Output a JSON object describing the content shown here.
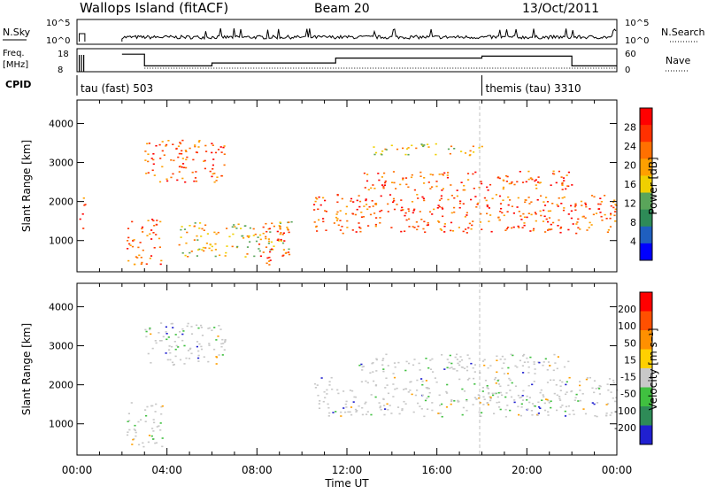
{
  "header": {
    "title": "Wallops Island (fitACF)",
    "beam": "Beam 20",
    "date": "13/Oct/2011"
  },
  "strip_labels": {
    "nsky": "N.Sky",
    "nsky_ticks": [
      "10^5",
      "10^0"
    ],
    "nsearch": "N.Search",
    "nsearch_ticks": [
      "10^5",
      "10^0"
    ],
    "freq_top": "Freq.",
    "freq_unit": "[MHz]",
    "freq_ticks": [
      "18",
      "8"
    ],
    "nave": "Nave",
    "nave_ticks": [
      "60",
      "0"
    ],
    "cpid": "CPID"
  },
  "cpid_segments": [
    {
      "label": "tau (fast) 503",
      "start_hour": 0
    },
    {
      "label": "themis (tau) 3310",
      "start_hour": 18
    }
  ],
  "colors": {
    "frame": "#000000",
    "power_scale": [
      "#0000ff",
      "#1f5fbf",
      "#2e8b57",
      "#5aa55a",
      "#f0d000",
      "#ffa000",
      "#ff7000",
      "#ff3000",
      "#ff0000"
    ],
    "velocity_scale": [
      "#2020d0",
      "#2e8b57",
      "#40c040",
      "#c8c8c8",
      "#ffd000",
      "#ff9000",
      "#ff5000",
      "#ff0000"
    ]
  },
  "chart_data": [
    {
      "type": "heatmap",
      "name": "power-panel",
      "ylabel": "Slant Range [km]",
      "xlabel": "",
      "x_unit": "hour UT",
      "xlim": [
        0,
        24
      ],
      "ylim": [
        200,
        4600
      ],
      "yticks": [
        1000,
        2000,
        3000,
        4000
      ],
      "colorbar": {
        "label": "Power [dB]",
        "ticks": [
          4,
          8,
          12,
          16,
          20,
          24,
          28
        ]
      },
      "echo_regions": [
        {
          "hour_start": 0.1,
          "hour_end": 0.35,
          "range_low": 1300,
          "range_high": 2200,
          "level": "high"
        },
        {
          "hour_start": 2.2,
          "hour_end": 3.8,
          "range_low": 400,
          "range_high": 1600,
          "level": "high"
        },
        {
          "hour_start": 3.0,
          "hour_end": 6.6,
          "range_low": 2500,
          "range_high": 3600,
          "level": "high"
        },
        {
          "hour_start": 4.5,
          "hour_end": 9.5,
          "range_low": 600,
          "range_high": 1500,
          "level": "medium"
        },
        {
          "hour_start": 8.0,
          "hour_end": 9.4,
          "range_low": 400,
          "range_high": 1400,
          "level": "high"
        },
        {
          "hour_start": 10.5,
          "hour_end": 24,
          "range_low": 1200,
          "range_high": 2200,
          "level": "high"
        },
        {
          "hour_start": 12.5,
          "hour_end": 22,
          "range_low": 2300,
          "range_high": 2800,
          "level": "high"
        },
        {
          "hour_start": 13.0,
          "hour_end": 18.0,
          "range_low": 3200,
          "range_high": 3500,
          "level": "medium"
        }
      ]
    },
    {
      "type": "heatmap",
      "name": "velocity-panel",
      "ylabel": "Slant Range [km]",
      "xlabel": "Time UT",
      "x_unit": "hour UT",
      "xlim": [
        0,
        24
      ],
      "ylim": [
        200,
        4600
      ],
      "yticks": [
        1000,
        2000,
        3000,
        4000
      ],
      "xticks": [
        "00:00",
        "04:00",
        "08:00",
        "12:00",
        "16:00",
        "20:00",
        "00:00"
      ],
      "colorbar": {
        "label": "Velocity [m s⁻¹]",
        "ticks": [
          200,
          100,
          50,
          15,
          -15,
          -50,
          -100,
          -200
        ]
      },
      "echo_regions": [
        {
          "hour_start": 2.2,
          "hour_end": 3.8,
          "range_low": 400,
          "range_high": 1600,
          "level": "low"
        },
        {
          "hour_start": 3.0,
          "hour_end": 6.6,
          "range_low": 2500,
          "range_high": 3600,
          "level": "low"
        },
        {
          "hour_start": 10.5,
          "hour_end": 24,
          "range_low": 1200,
          "range_high": 2200,
          "level": "low"
        },
        {
          "hour_start": 12.5,
          "hour_end": 22,
          "range_low": 2300,
          "range_high": 2800,
          "level": "low"
        }
      ]
    }
  ]
}
